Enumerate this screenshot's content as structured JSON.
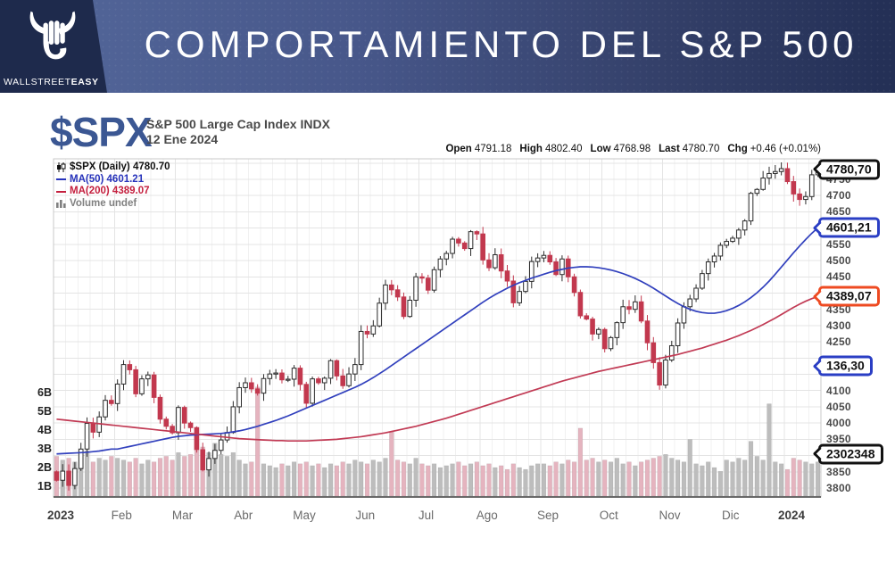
{
  "header": {
    "title": "COMPORTAMIENTO DEL S&P 500",
    "brand_regular": "WALLSTREET",
    "brand_bold": "EASY"
  },
  "chart_header": {
    "symbol": "$SPX",
    "name": "S&P 500 Large Cap Index INDX",
    "date": "12 Ene 2024",
    "ohlc": [
      {
        "label": "Open",
        "value": "4791.18"
      },
      {
        "label": "High",
        "value": "4802.40"
      },
      {
        "label": "Low",
        "value": "4768.98"
      },
      {
        "label": "Last",
        "value": "4780.70"
      },
      {
        "label": "Chg",
        "value": "+0.46 (+0.01%)"
      }
    ]
  },
  "legend": {
    "spx": "$SPX (Daily) 4780.70",
    "ma50": "MA(50) 4601.21",
    "ma200": "MA(200) 4389.07",
    "volume": "Volume undef"
  },
  "chart_data": {
    "type": "candlestick",
    "title": "S&P 500 daily candles with MA(50), MA(200) and volume, Ene 2023 - 12 Ene 2024",
    "x_months": [
      {
        "label": "2023",
        "bold": true
      },
      {
        "label": "Feb"
      },
      {
        "label": "Mar"
      },
      {
        "label": "Abr"
      },
      {
        "label": "May"
      },
      {
        "label": "Jun"
      },
      {
        "label": "Jul"
      },
      {
        "label": "Ago"
      },
      {
        "label": "Sep"
      },
      {
        "label": "Oct"
      },
      {
        "label": "Nov"
      },
      {
        "label": "Dic"
      },
      {
        "label": "2024",
        "bold": true
      }
    ],
    "points_per_month": 10,
    "y_axis": {
      "min": 3800,
      "max": 4800,
      "step": 50
    },
    "volume_axis_ticks": [
      "1B",
      "2B",
      "3B",
      "4B",
      "5B",
      "6B"
    ],
    "open_first": 3850,
    "closes": [
      3824,
      3852,
      3808,
      3860,
      3920,
      3999,
      3972,
      4019,
      4070,
      4060,
      4120,
      4180,
      4164,
      4090,
      4136,
      4148,
      4079,
      4012,
      3990,
      3970,
      4048,
      4000,
      3986,
      3918,
      3856,
      3891,
      3916,
      3948,
      3971,
      4050,
      4109,
      4124,
      4105,
      4092,
      4137,
      4151,
      4154,
      4133,
      4135,
      4169,
      4119,
      4061,
      4136,
      4124,
      4138,
      4192,
      4145,
      4115,
      4151,
      4180,
      4282,
      4274,
      4299,
      4369,
      4425,
      4410,
      4388,
      4328,
      4378,
      4450,
      4446,
      4409,
      4472,
      4505,
      4522,
      4566,
      4554,
      4537,
      4589,
      4582,
      4502,
      4478,
      4518,
      4468,
      4437,
      4370,
      4405,
      4436,
      4497,
      4508,
      4516,
      4496,
      4457,
      4505,
      4450,
      4402,
      4330,
      4320,
      4274,
      4288,
      4229,
      4263,
      4309,
      4358,
      4350,
      4373,
      4314,
      4247,
      4186,
      4117,
      4194,
      4238,
      4308,
      4358,
      4382,
      4415,
      4460,
      4496,
      4514,
      4547,
      4559,
      4569,
      4594,
      4622,
      4707,
      4719,
      4754,
      4768,
      4774,
      4783,
      4743,
      4705,
      4688,
      4697,
      4764,
      4780.7
    ],
    "series": [
      {
        "name": "MA(50)",
        "color": "#3140bd",
        "values": [
          3905,
          3906,
          3907,
          3908,
          3909,
          3910,
          3912,
          3914,
          3917,
          3920,
          3920,
          3924,
          3928,
          3932,
          3936,
          3940,
          3944,
          3948,
          3952,
          3956,
          3959,
          3961,
          3963,
          3964,
          3965,
          3966,
          3967,
          3968,
          3970,
          3973,
          3976,
          3980,
          3985,
          3990,
          3996,
          4002,
          4008,
          4015,
          4022,
          4030,
          4038,
          4046,
          4054,
          4062,
          4070,
          4078,
          4086,
          4094,
          4102,
          4110,
          4119,
          4129,
          4140,
          4152,
          4164,
          4177,
          4190,
          4203,
          4216,
          4229,
          4242,
          4255,
          4268,
          4281,
          4294,
          4307,
          4320,
          4333,
          4346,
          4359,
          4372,
          4384,
          4395,
          4405,
          4415,
          4424,
          4432,
          4439,
          4446,
          4452,
          4458,
          4464,
          4469,
          4473,
          4477,
          4479,
          4481,
          4481,
          4480,
          4478,
          4475,
          4471,
          4466,
          4460,
          4453,
          4445,
          4436,
          4426,
          4415,
          4403,
          4391,
          4379,
          4368,
          4358,
          4350,
          4344,
          4340,
          4338,
          4338,
          4341,
          4346,
          4353,
          4362,
          4373,
          4386,
          4401,
          4418,
          4437,
          4458,
          4480,
          4502,
          4524,
          4545,
          4565,
          4584,
          4601.21
        ]
      },
      {
        "name": "MA(200)",
        "color": "#c13a54",
        "values": [
          4012,
          4010,
          4008,
          4006,
          4004,
          4002,
          4000,
          3998,
          3996,
          3994,
          3992,
          3990,
          3988,
          3986,
          3984,
          3982,
          3980,
          3978,
          3976,
          3974,
          3972,
          3970,
          3968,
          3966,
          3964,
          3962,
          3960,
          3958,
          3956,
          3954,
          3952,
          3951,
          3950,
          3949,
          3948,
          3947,
          3946,
          3946,
          3945,
          3945,
          3945,
          3945,
          3946,
          3947,
          3948,
          3949,
          3950,
          3952,
          3954,
          3956,
          3958,
          3961,
          3964,
          3967,
          3970,
          3974,
          3978,
          3982,
          3986,
          3990,
          3995,
          4000,
          4005,
          4010,
          4015,
          4021,
          4027,
          4033,
          4039,
          4045,
          4051,
          4057,
          4063,
          4069,
          4075,
          4081,
          4087,
          4093,
          4099,
          4105,
          4111,
          4117,
          4123,
          4129,
          4134,
          4139,
          4144,
          4149,
          4154,
          4159,
          4163,
          4167,
          4171,
          4175,
          4179,
          4183,
          4187,
          4191,
          4195,
          4199,
          4203,
          4207,
          4211,
          4216,
          4221,
          4226,
          4231,
          4237,
          4243,
          4249,
          4255,
          4262,
          4269,
          4277,
          4285,
          4294,
          4303,
          4313,
          4323,
          4334,
          4345,
          4356,
          4366,
          4375,
          4383,
          4389.07
        ]
      }
    ],
    "volumes_billions": [
      2.6,
      2.4,
      2.5,
      2.3,
      2.4,
      2.9,
      2.3,
      2.5,
      2.4,
      2.6,
      2.5,
      2.4,
      2.3,
      2.5,
      2.2,
      2.4,
      2.3,
      2.5,
      2.6,
      2.4,
      2.8,
      2.6,
      2.7,
      2.9,
      3.1,
      2.8,
      3.3,
      2.7,
      2.6,
      2.8,
      2.4,
      2.2,
      2.3,
      6.3,
      2.2,
      2.1,
      2.0,
      2.2,
      2.1,
      2.3,
      2.2,
      2.3,
      2.1,
      2.2,
      2.0,
      2.2,
      2.1,
      2.3,
      2.2,
      2.4,
      2.3,
      2.2,
      2.4,
      2.3,
      2.5,
      3.9,
      2.4,
      2.3,
      2.2,
      2.5,
      2.2,
      2.1,
      2.2,
      2.0,
      2.1,
      2.2,
      2.3,
      2.1,
      2.2,
      2.3,
      2.1,
      2.2,
      2.0,
      2.1,
      1.9,
      2.2,
      2.0,
      1.9,
      2.1,
      2.2,
      2.2,
      2.1,
      2.3,
      2.2,
      2.4,
      2.3,
      4.1,
      2.4,
      2.5,
      2.3,
      2.4,
      2.3,
      2.5,
      2.2,
      2.3,
      2.1,
      2.3,
      2.4,
      2.5,
      2.6,
      2.7,
      2.5,
      2.4,
      2.3,
      3.5,
      2.2,
      2.1,
      2.3,
      2.0,
      1.8,
      2.4,
      2.3,
      2.5,
      2.4,
      3.4,
      2.6,
      2.4,
      5.4,
      2.3,
      2.2,
      1.9,
      2.5,
      2.4,
      2.3,
      2.2,
      2.3
    ],
    "callouts": [
      {
        "text": "4780,70",
        "at": 4780.7,
        "color": "#111111",
        "meaning": "last price"
      },
      {
        "text": "4601,21",
        "at": 4601.21,
        "color": "#2a3ec4",
        "meaning": "MA(50)"
      },
      {
        "text": "4389,07",
        "at": 4389.07,
        "color": "#ee4a21",
        "meaning": "MA(200)"
      },
      {
        "text": "136,30",
        "at": 4175,
        "color": "#2a3ec4",
        "meaning": "indicator value"
      },
      {
        "text": "2302348",
        "at": 3905,
        "color": "#111111",
        "meaning": "volume"
      }
    ],
    "colors": {
      "candle_up_fill": "#ffffff",
      "candle_up_stroke": "#2b2b2b",
      "candle_down": "#c2384e",
      "volume_up": "#bdbdbd",
      "volume_down": "#e5b4bf",
      "grid_major": "#e4e4e4",
      "grid_minor": "#f1f1f1",
      "plot_border": "#c9c9c9",
      "axis_bottom": "#3a3a3a"
    }
  }
}
